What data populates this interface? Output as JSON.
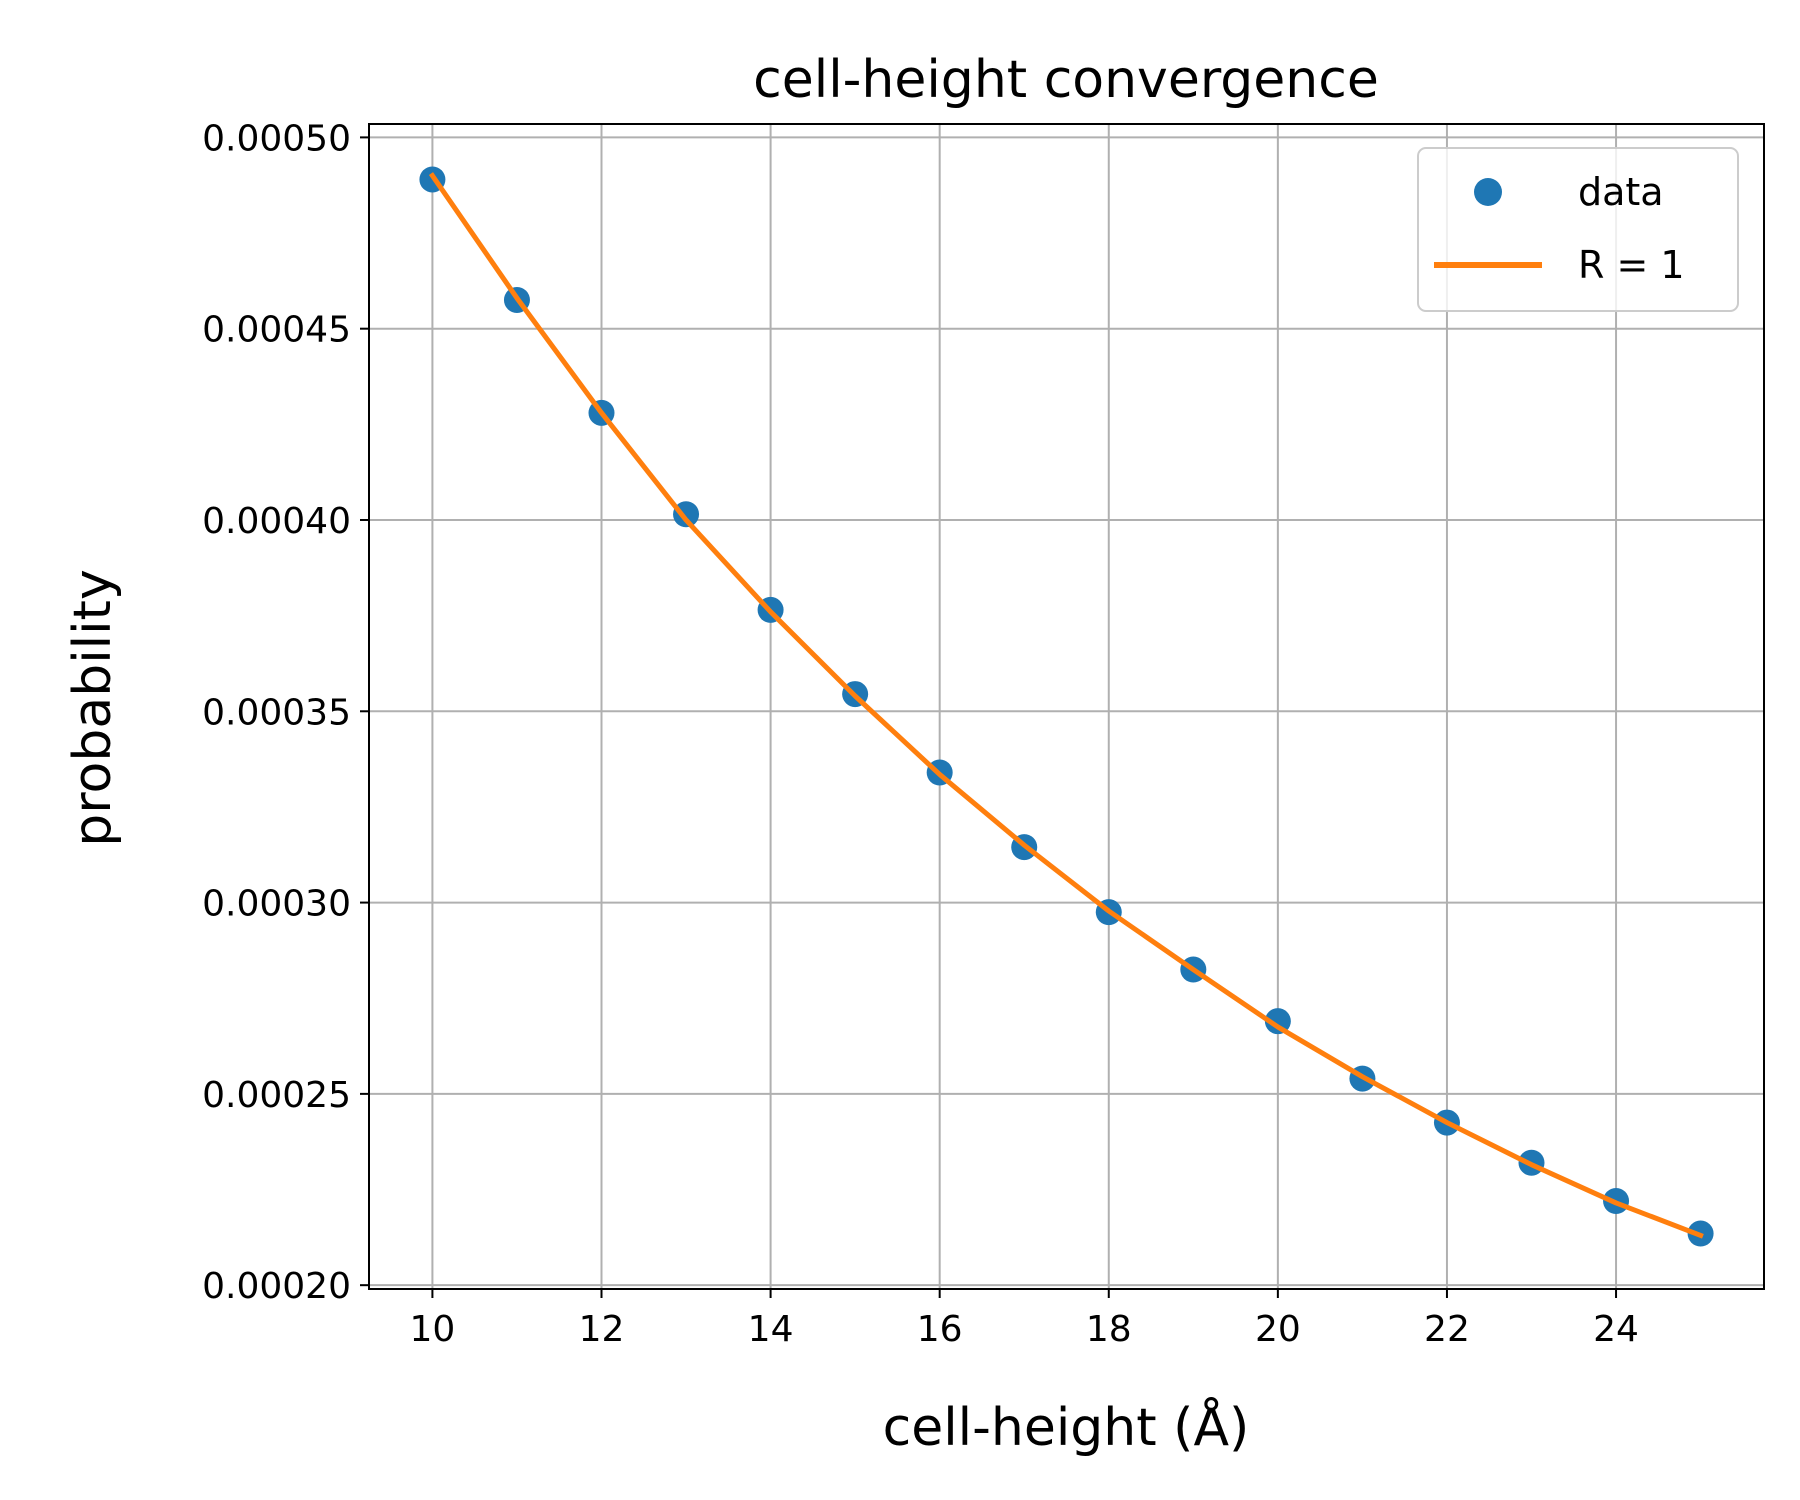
{
  "chart_data": {
    "type": "scatter",
    "title": "cell-height convergence",
    "xlabel": "cell-height (Å)",
    "ylabel": "probability",
    "xlim": [
      9.25,
      25.75
    ],
    "ylim": [
      0.000199,
      0.0005035
    ],
    "xticks": [
      10,
      12,
      14,
      16,
      18,
      20,
      22,
      24
    ],
    "xtick_labels": [
      "10",
      "12",
      "14",
      "16",
      "18",
      "20",
      "22",
      "24"
    ],
    "yticks": [
      0.0002,
      0.00025,
      0.0003,
      0.00035,
      0.0004,
      0.00045,
      0.0005
    ],
    "ytick_labels": [
      "0.00020",
      "0.00025",
      "0.00030",
      "0.00035",
      "0.00040",
      "0.00045",
      "0.00050"
    ],
    "grid": true,
    "legend_position": "top-right",
    "series": [
      {
        "name": "data",
        "kind": "markers",
        "color": "#1f77b4",
        "x": [
          10,
          11,
          12,
          13,
          14,
          15,
          16,
          17,
          18,
          19,
          20,
          21,
          22,
          23,
          24,
          25
        ],
        "y": [
          0.000489,
          0.0004575,
          0.000428,
          0.0004015,
          0.0003765,
          0.0003545,
          0.000334,
          0.0003145,
          0.0002975,
          0.0002825,
          0.000269,
          0.000254,
          0.0002425,
          0.000232,
          0.000222,
          0.0002135
        ]
      },
      {
        "name": "R = 1",
        "kind": "line",
        "color": "#ff7f0e",
        "x": [
          10,
          11,
          12,
          13,
          14,
          15,
          16,
          17,
          18,
          19,
          20,
          21,
          22,
          23,
          24,
          25
        ],
        "y": [
          0.00049,
          0.000458,
          0.000428,
          0.0004,
          0.000376,
          0.000354,
          0.0003335,
          0.000315,
          0.0002978,
          0.0002825,
          0.0002675,
          0.0002545,
          0.0002425,
          0.0002315,
          0.0002215,
          0.000213
        ]
      }
    ]
  }
}
